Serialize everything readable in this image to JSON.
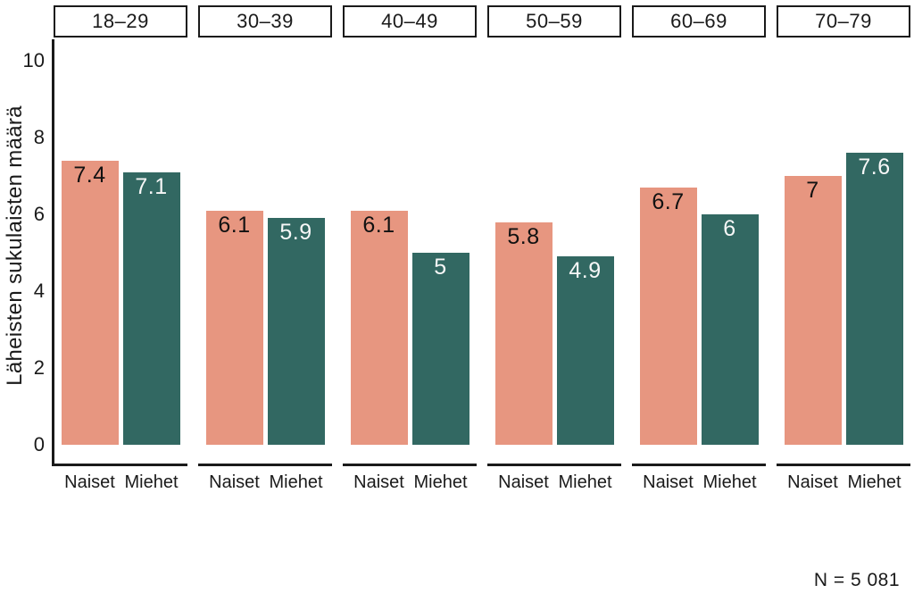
{
  "chart_data": {
    "type": "bar",
    "title": "",
    "ylabel": "Läheisten sukulaisten määrä",
    "xlabel": "",
    "ylim": [
      0,
      10.6
    ],
    "yticks": [
      0,
      2,
      4,
      6,
      8,
      10
    ],
    "grid": false,
    "legend": "none",
    "facet_row": "age groups",
    "categories": [
      "Naiset",
      "Miehet"
    ],
    "series_colors": [
      "#E79680",
      "#326862"
    ],
    "value_label_colors": [
      "#111111",
      "#f7f7f7"
    ],
    "facets": [
      {
        "label": "18–29",
        "values": [
          7.4,
          7.1
        ],
        "value_labels": [
          "7.4",
          "7.1"
        ]
      },
      {
        "label": "30–39",
        "values": [
          6.1,
          5.9
        ],
        "value_labels": [
          "6.1",
          "5.9"
        ]
      },
      {
        "label": "40–49",
        "values": [
          6.1,
          5.0
        ],
        "value_labels": [
          "6.1",
          "5"
        ]
      },
      {
        "label": "50–59",
        "values": [
          5.8,
          4.9
        ],
        "value_labels": [
          "5.8",
          "4.9"
        ]
      },
      {
        "label": "60–69",
        "values": [
          6.7,
          6.0
        ],
        "value_labels": [
          "6.7",
          "6"
        ]
      },
      {
        "label": "70–79",
        "values": [
          7.0,
          7.6
        ],
        "value_labels": [
          "7",
          "7.6"
        ]
      }
    ],
    "note": "N = 5 081"
  },
  "colors": {
    "background": "#ffffff",
    "axis": "#1a1a1a",
    "text": "#1a1a1a"
  }
}
